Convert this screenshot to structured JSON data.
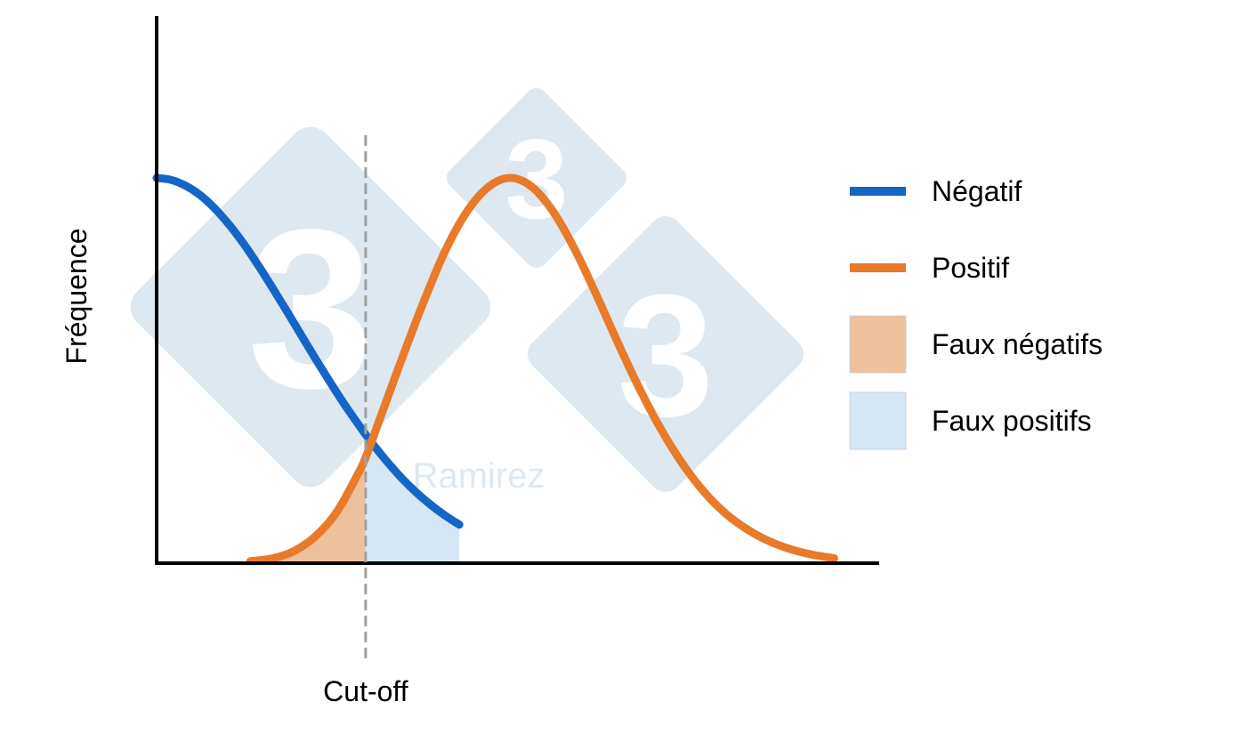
{
  "chart_data": {
    "type": "line",
    "title": "",
    "xlabel": "",
    "ylabel": "Fréquence",
    "xlim": [
      0,
      100
    ],
    "ylim": [
      0,
      100
    ],
    "grid": false,
    "legend_position": "right",
    "cutoff": {
      "x": 29,
      "label": "Cut-off",
      "color": "#a0a0a0"
    },
    "series": [
      {
        "name": "Négatif",
        "color": "#1565c8",
        "x": [
          0,
          2,
          4,
          6,
          8,
          10,
          12,
          14,
          16,
          18,
          20,
          22,
          24,
          26,
          28,
          29,
          30,
          32,
          34,
          36,
          38,
          40,
          42
        ],
        "y": [
          100,
          99.5,
          98,
          95.6,
          92.2,
          88.0,
          83.1,
          77.6,
          71.7,
          65.6,
          59.4,
          53.2,
          47.2,
          41.4,
          36.0,
          33.4,
          30.9,
          26.3,
          22.1,
          18.4,
          15.2,
          12.4,
          10.0
        ]
      },
      {
        "name": "Positif",
        "color": "#e87a2a",
        "x": [
          13,
          16,
          19,
          22,
          25,
          28,
          29,
          31,
          34,
          37,
          40,
          43,
          46,
          49,
          52,
          55,
          58,
          61,
          64,
          67,
          70,
          73,
          76,
          79,
          82,
          85,
          88,
          91,
          94
        ],
        "y": [
          0.5,
          1.2,
          3.1,
          6.9,
          13.3,
          23.4,
          27.4,
          37.6,
          52.9,
          67.6,
          80.9,
          91.1,
          97.6,
          100,
          97.8,
          91.3,
          81.5,
          69.7,
          57.2,
          45.3,
          34.7,
          25.7,
          18.4,
          12.8,
          8.7,
          5.7,
          3.6,
          2.2,
          1.3
        ]
      }
    ],
    "areas": [
      {
        "name": "Faux négatifs",
        "color": "#eec09b",
        "from_series": "Positif",
        "x_range": [
          13,
          29
        ]
      },
      {
        "name": "Faux positifs",
        "color": "#d6e6f4",
        "from_series": "Négatif",
        "x_range": [
          29,
          42
        ]
      }
    ]
  },
  "watermark": {
    "text": "A Ramirez",
    "logo_glyph": "3",
    "color": "#dde8f1"
  }
}
